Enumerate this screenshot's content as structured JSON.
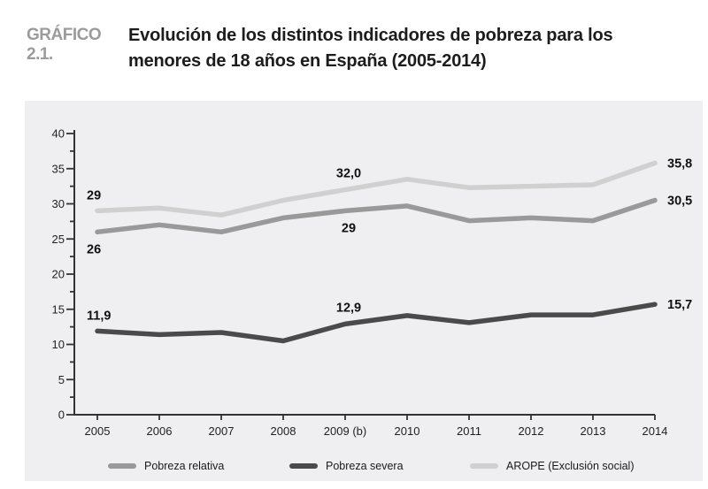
{
  "header": {
    "kicker": "GRÁFICO 2.1.",
    "title_line1": "Evolución de los distintos indicadores de pobreza para los",
    "title_line2": "menores de 18 años en España (2005-2014)"
  },
  "colors": {
    "panel_bg": "#efeff1",
    "axis": "#333333",
    "tick_label": "#222222",
    "data_label": "#111111",
    "kicker": "#9b9b9b",
    "title": "#1c1c1c"
  },
  "chart_data": {
    "type": "line",
    "title": "Evolución de los distintos indicadores de pobreza para los menores de 18 años en España (2005-2014)",
    "categories": [
      "2005",
      "2006",
      "2007",
      "2008",
      "2009 (b)",
      "2010",
      "2011",
      "2012",
      "2013",
      "2014"
    ],
    "series": [
      {
        "name": "Pobreza relativa",
        "color": "#999999",
        "values": [
          26.0,
          27.0,
          26.0,
          28.0,
          29.0,
          29.7,
          27.6,
          28.0,
          27.6,
          30.5
        ]
      },
      {
        "name": "Pobreza severa",
        "color": "#4a4a4a",
        "values": [
          11.9,
          11.4,
          11.7,
          10.5,
          12.9,
          14.1,
          13.1,
          14.2,
          14.2,
          15.7
        ]
      },
      {
        "name": "AROPE (Exclusión social)",
        "color": "#d0d0d0",
        "values": [
          29.0,
          29.4,
          28.4,
          30.5,
          32.0,
          33.5,
          32.3,
          32.5,
          32.7,
          35.8
        ]
      }
    ],
    "xlabel": "",
    "ylabel": "",
    "ylim": [
      0,
      40
    ],
    "ytick_step": 5,
    "ytick_minor_step": 2.5,
    "grid": false,
    "legend_position": "bottom",
    "annotations": [
      {
        "series": 2,
        "point": 0,
        "text": "29",
        "placement": "above-left"
      },
      {
        "series": 0,
        "point": 0,
        "text": "26",
        "placement": "below-left"
      },
      {
        "series": 1,
        "point": 0,
        "text": "11,9",
        "placement": "above-left"
      },
      {
        "series": 2,
        "point": 4,
        "text": "32,0",
        "placement": "above"
      },
      {
        "series": 0,
        "point": 4,
        "text": "29",
        "placement": "below"
      },
      {
        "series": 1,
        "point": 4,
        "text": "12,9",
        "placement": "above"
      },
      {
        "series": 2,
        "point": 9,
        "text": "35,8",
        "placement": "right"
      },
      {
        "series": 0,
        "point": 9,
        "text": "30,5",
        "placement": "right"
      },
      {
        "series": 1,
        "point": 9,
        "text": "15,7",
        "placement": "right"
      }
    ]
  }
}
